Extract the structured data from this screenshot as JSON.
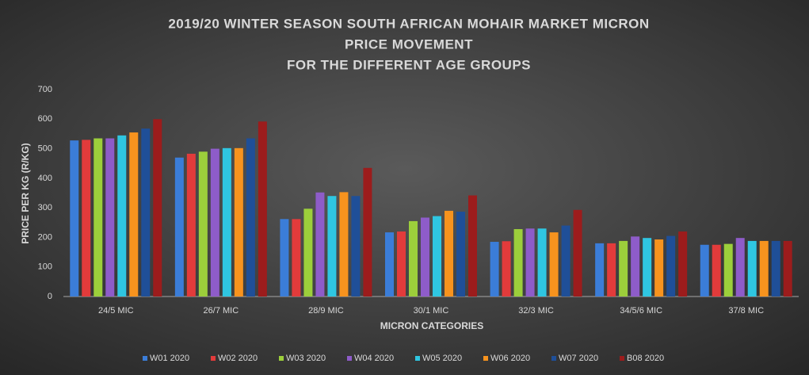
{
  "chart_data": {
    "type": "bar",
    "title": [
      "2019/20 WINTER SEASON SOUTH AFRICAN MOHAIR MARKET MICRON",
      "PRICE MOVEMENT",
      "FOR THE DIFFERENT AGE GROUPS"
    ],
    "x_label": "MICRON CATEGORIES",
    "y_label": "PRICE PER KG (R/KG)",
    "categories": [
      "24/5 MIC",
      "26/7 MIC",
      "28/9 MIC",
      "30/1 MIC",
      "32/3 MIC",
      "34/5/6 MIC",
      "37/8 MIC"
    ],
    "series": [
      {
        "name": "W01 2020",
        "color": "#3b7dd8",
        "values": [
          528,
          470,
          262,
          217,
          185,
          180,
          175
        ]
      },
      {
        "name": "W02 2020",
        "color": "#e23b3b",
        "values": [
          530,
          483,
          262,
          220,
          187,
          180,
          175
        ]
      },
      {
        "name": "W03 2020",
        "color": "#9ccf3b",
        "values": [
          535,
          490,
          297,
          255,
          228,
          188,
          178
        ]
      },
      {
        "name": "W04 2020",
        "color": "#8e5cc9",
        "values": [
          535,
          500,
          352,
          267,
          230,
          203,
          198
        ]
      },
      {
        "name": "W05 2020",
        "color": "#2fc6e1",
        "values": [
          545,
          502,
          340,
          272,
          230,
          198,
          188
        ]
      },
      {
        "name": "W06 2020",
        "color": "#f7931e",
        "values": [
          555,
          502,
          353,
          290,
          217,
          193,
          188
        ]
      },
      {
        "name": "W07 2020",
        "color": "#1f4f98",
        "values": [
          568,
          535,
          340,
          287,
          240,
          205,
          188
        ]
      },
      {
        "name": "B08 2020",
        "color": "#9c1c1c",
        "values": [
          600,
          592,
          435,
          342,
          293,
          220,
          188
        ]
      }
    ],
    "ylim": [
      0,
      700
    ],
    "yticks": [
      0,
      100,
      200,
      300,
      400,
      500,
      600,
      700
    ],
    "grid": false,
    "legend": "bottom"
  }
}
